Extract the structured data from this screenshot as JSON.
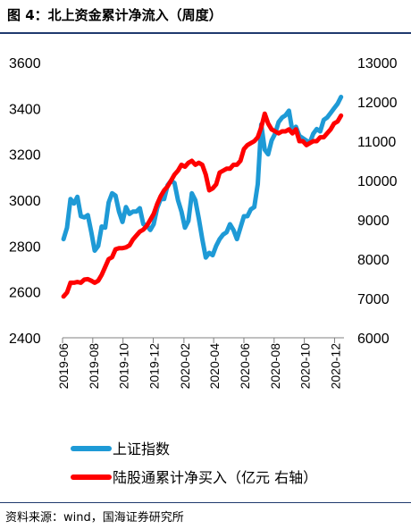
{
  "figure": {
    "title": "图 4：北上资金累计净流入（周度）",
    "source": "资料来源：wind，国海证券研究所"
  },
  "colors": {
    "series_index": "#1e9ad6",
    "series_flow": "#ff0000",
    "rule": "#1f3a6e"
  },
  "chart_data": {
    "type": "line",
    "title": "",
    "x_ticks": [
      "2019-06",
      "2019-08",
      "2019-10",
      "2019-12",
      "2020-02",
      "2020-04",
      "2020-06",
      "2020-08",
      "2020-10",
      "2020-12"
    ],
    "y_left": {
      "lim": [
        2400,
        3600
      ],
      "ticks": [
        "3600",
        "3400",
        "3200",
        "3000",
        "2800",
        "2600",
        "2400"
      ]
    },
    "y_right": {
      "lim": [
        6000,
        13000
      ],
      "ticks": [
        "13000",
        "12000",
        "11000",
        "10000",
        "9000",
        "8000",
        "7000",
        "6000"
      ]
    },
    "grid": false,
    "legend_position": "bottom",
    "series": [
      {
        "name": "上证指数",
        "axis": "left",
        "x": [
          "2019-06-03",
          "2019-06-10",
          "2019-06-17",
          "2019-06-24",
          "2019-07-01",
          "2019-07-08",
          "2019-07-15",
          "2019-07-22",
          "2019-07-29",
          "2019-08-05",
          "2019-08-12",
          "2019-08-19",
          "2019-08-26",
          "2019-09-02",
          "2019-09-09",
          "2019-09-16",
          "2019-09-23",
          "2019-09-30",
          "2019-10-07",
          "2019-10-14",
          "2019-10-21",
          "2019-10-28",
          "2019-11-04",
          "2019-11-11",
          "2019-11-18",
          "2019-11-25",
          "2019-12-02",
          "2019-12-09",
          "2019-12-16",
          "2019-12-23",
          "2019-12-30",
          "2020-01-06",
          "2020-01-13",
          "2020-01-20",
          "2020-01-27",
          "2020-02-03",
          "2020-02-10",
          "2020-02-17",
          "2020-02-24",
          "2020-03-02",
          "2020-03-09",
          "2020-03-16",
          "2020-03-23",
          "2020-03-30",
          "2020-04-06",
          "2020-04-13",
          "2020-04-20",
          "2020-04-27",
          "2020-05-04",
          "2020-05-11",
          "2020-05-18",
          "2020-05-25",
          "2020-06-01",
          "2020-06-08",
          "2020-06-15",
          "2020-06-22",
          "2020-06-29",
          "2020-07-06",
          "2020-07-13",
          "2020-07-20",
          "2020-07-27",
          "2020-08-03",
          "2020-08-10",
          "2020-08-17",
          "2020-08-24",
          "2020-08-31",
          "2020-09-07",
          "2020-09-14",
          "2020-09-21",
          "2020-09-28",
          "2020-10-05",
          "2020-10-12",
          "2020-10-19",
          "2020-10-26",
          "2020-11-02",
          "2020-11-09",
          "2020-11-16",
          "2020-11-23",
          "2020-11-30",
          "2020-12-07",
          "2020-12-14"
        ],
        "y": [
          2830,
          2880,
          3005,
          2985,
          3015,
          2930,
          2925,
          2935,
          2860,
          2780,
          2800,
          2885,
          2880,
          2990,
          3030,
          3020,
          2950,
          2905,
          2970,
          2940,
          2950,
          2950,
          2965,
          2895,
          2890,
          2870,
          2895,
          2965,
          3005,
          3005,
          3065,
          3085,
          3075,
          3000,
          2950,
          2880,
          2910,
          3030,
          3000,
          2920,
          2830,
          2750,
          2770,
          2760,
          2800,
          2830,
          2850,
          2860,
          2895,
          2870,
          2830,
          2880,
          2930,
          2930,
          2960,
          2970,
          3070,
          3330,
          3220,
          3200,
          3260,
          3290,
          3340,
          3360,
          3370,
          3390,
          3300,
          3320,
          3280,
          3270,
          3260,
          3250,
          3290,
          3310,
          3300,
          3350,
          3360,
          3380,
          3400,
          3420,
          3450
        ]
      },
      {
        "name": "陆股通累计净买入（亿元 右轴）",
        "axis": "right",
        "x": [
          "2019-06-03",
          "2019-06-10",
          "2019-06-17",
          "2019-06-24",
          "2019-07-01",
          "2019-07-08",
          "2019-07-15",
          "2019-07-22",
          "2019-07-29",
          "2019-08-05",
          "2019-08-12",
          "2019-08-19",
          "2019-08-26",
          "2019-09-02",
          "2019-09-09",
          "2019-09-16",
          "2019-09-23",
          "2019-09-30",
          "2019-10-07",
          "2019-10-14",
          "2019-10-21",
          "2019-10-28",
          "2019-11-04",
          "2019-11-11",
          "2019-11-18",
          "2019-11-25",
          "2019-12-02",
          "2019-12-09",
          "2019-12-16",
          "2019-12-23",
          "2019-12-30",
          "2020-01-06",
          "2020-01-13",
          "2020-01-20",
          "2020-01-27",
          "2020-02-03",
          "2020-02-10",
          "2020-02-17",
          "2020-02-24",
          "2020-03-02",
          "2020-03-09",
          "2020-03-16",
          "2020-03-23",
          "2020-03-30",
          "2020-04-06",
          "2020-04-13",
          "2020-04-20",
          "2020-04-27",
          "2020-05-04",
          "2020-05-11",
          "2020-05-18",
          "2020-05-25",
          "2020-06-01",
          "2020-06-08",
          "2020-06-15",
          "2020-06-22",
          "2020-06-29",
          "2020-07-06",
          "2020-07-13",
          "2020-07-20",
          "2020-07-27",
          "2020-08-03",
          "2020-08-10",
          "2020-08-17",
          "2020-08-24",
          "2020-08-31",
          "2020-09-07",
          "2020-09-14",
          "2020-09-21",
          "2020-09-28",
          "2020-10-05",
          "2020-10-12",
          "2020-10-19",
          "2020-10-26",
          "2020-11-02",
          "2020-11-09",
          "2020-11-16",
          "2020-11-23",
          "2020-11-30",
          "2020-12-07",
          "2020-12-14"
        ],
        "y": [
          7050,
          7150,
          7400,
          7400,
          7420,
          7400,
          7480,
          7490,
          7450,
          7400,
          7450,
          7600,
          7800,
          8000,
          8050,
          8250,
          8280,
          8280,
          8300,
          8350,
          8500,
          8600,
          8700,
          8750,
          8850,
          9000,
          9150,
          9400,
          9600,
          9750,
          9850,
          10000,
          10150,
          10250,
          10400,
          10350,
          10450,
          10500,
          10400,
          10450,
          10400,
          10150,
          9750,
          9800,
          9900,
          10200,
          10250,
          10300,
          10300,
          10400,
          10400,
          10500,
          10800,
          10900,
          10950,
          11000,
          11100,
          11350,
          11700,
          11450,
          11300,
          11250,
          11200,
          11250,
          11250,
          11300,
          11200,
          11300,
          11000,
          11000,
          10900,
          10950,
          11000,
          11000,
          11100,
          11100,
          11200,
          11300,
          11450,
          11500,
          11650
        ]
      }
    ]
  }
}
